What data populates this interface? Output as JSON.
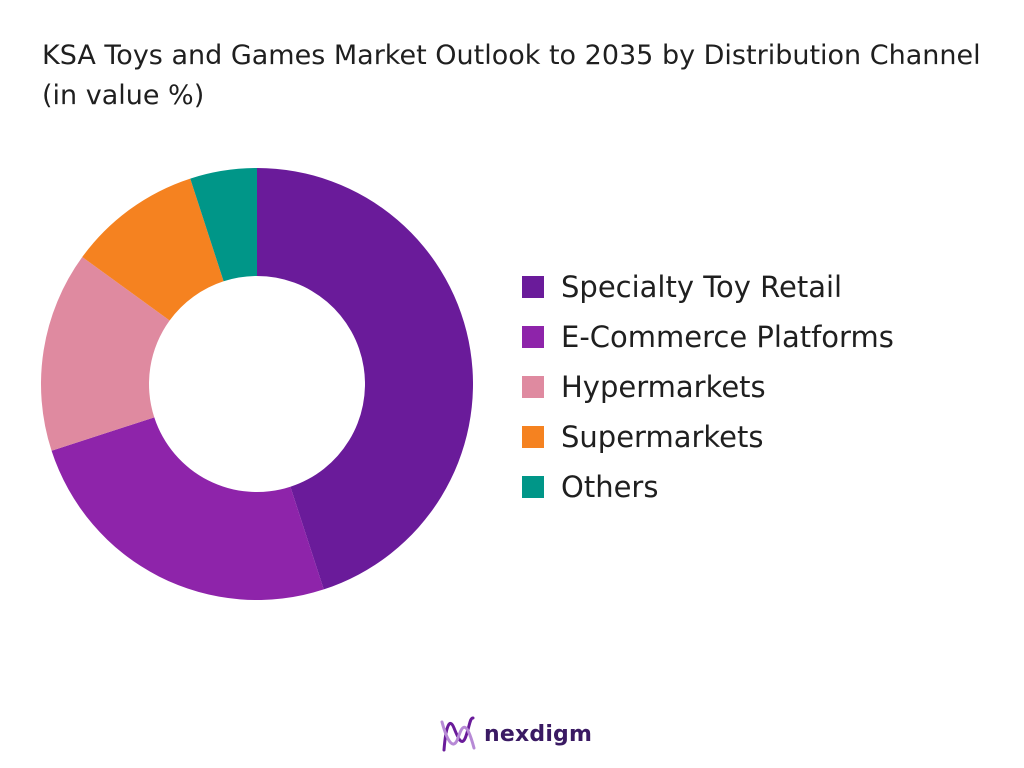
{
  "chart_data": {
    "type": "pie",
    "variant": "donut",
    "title": "KSA Toys and Games Market Outlook to 2035 by Distribution Channel (in value %)",
    "categories": [
      "Specialty Toy Retail",
      "E-Commerce Platforms",
      "Hypermarkets",
      "Supermarkets",
      "Others"
    ],
    "values": [
      45,
      25,
      15,
      10,
      5
    ],
    "unit": "%",
    "colors": [
      "#6a1b9a",
      "#8e24aa",
      "#df8aa0",
      "#f58220",
      "#009688"
    ],
    "start_angle_deg": 0,
    "direction": "clockwise",
    "legend_position": "right"
  },
  "brand": {
    "name": "nexdigm",
    "logo_icon": "nexdigm-logo-icon",
    "logo_colors": [
      "#6a1b9a",
      "#b78ad6"
    ]
  }
}
